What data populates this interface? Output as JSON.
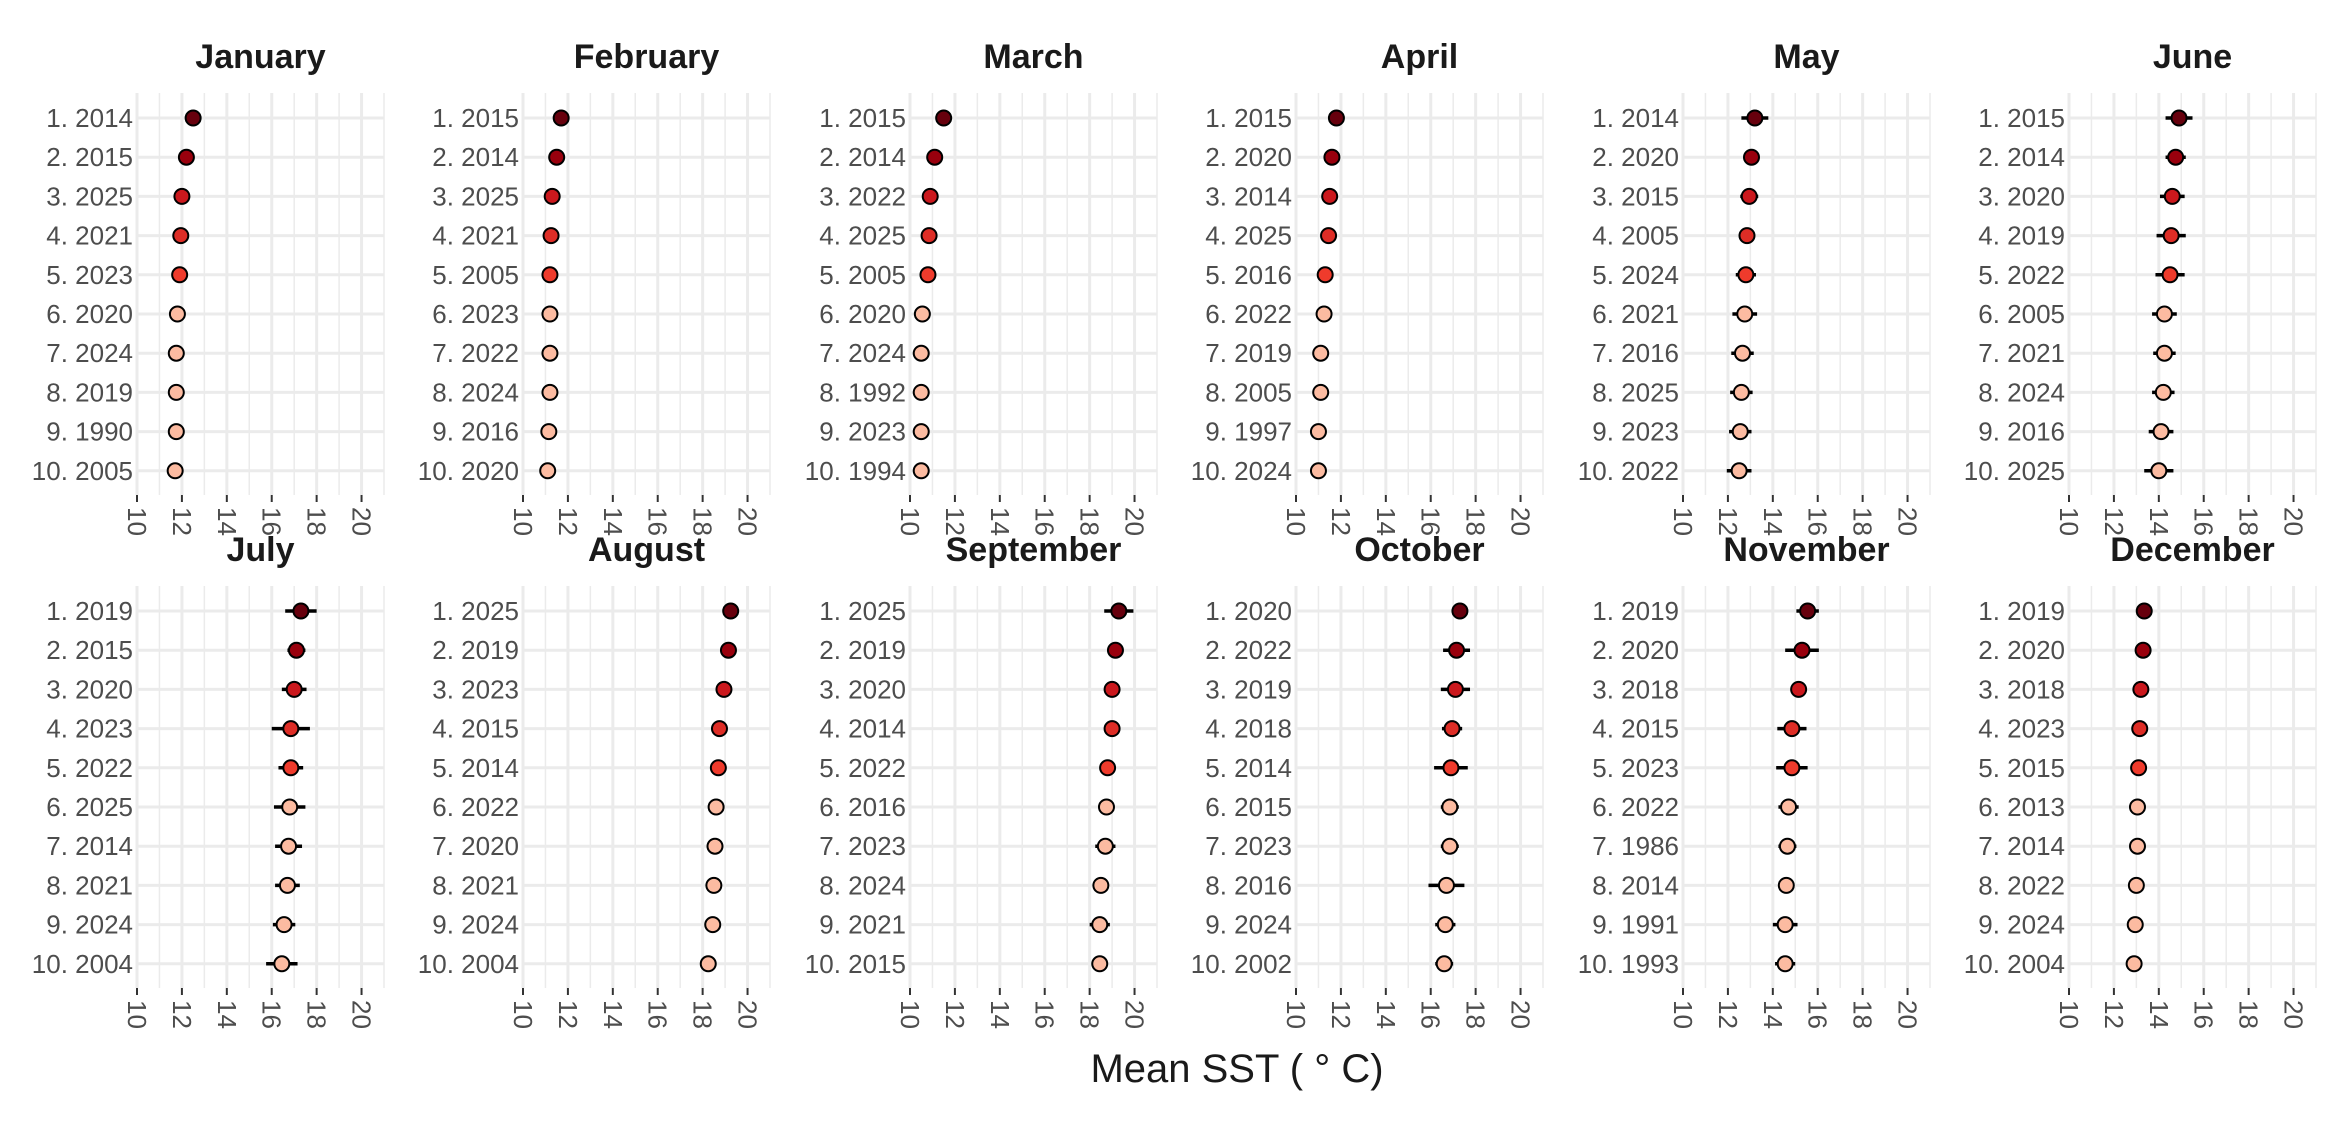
{
  "chart_data": {
    "type": "scatter",
    "xlabel": "Mean SST ( ° C)",
    "xlim": [
      10,
      21
    ],
    "xticks": [
      10,
      12,
      14,
      16,
      18,
      20
    ],
    "tick_labels": [
      "10",
      "12",
      "14",
      "16",
      "18",
      "20"
    ],
    "grid": true,
    "rank_colors": [
      "#67000d",
      "#99000d",
      "#cb181d",
      "#de2d26",
      "#ef3b2c",
      "#fcbba1",
      "#fcbba1",
      "#fcbba1",
      "#fcbba1",
      "#fcbba1"
    ],
    "panels": [
      {
        "title": "January",
        "labels": [
          "1. 2014",
          "2. 2015",
          "3. 2025",
          "4. 2021",
          "5. 2023",
          "6. 2020",
          "7. 2024",
          "8. 2019",
          "9. 1990",
          "10. 2005"
        ],
        "values": [
          12.5,
          12.2,
          12.0,
          11.95,
          11.9,
          11.8,
          11.75,
          11.75,
          11.75,
          11.7
        ],
        "err": [
          0.1,
          0.1,
          0.1,
          0.1,
          0.1,
          0.1,
          0.1,
          0.1,
          0.1,
          0.1
        ]
      },
      {
        "title": "February",
        "labels": [
          "1. 2015",
          "2. 2014",
          "3. 2025",
          "4. 2021",
          "5. 2005",
          "6. 2023",
          "7. 2022",
          "8. 2024",
          "9. 2016",
          "10. 2020"
        ],
        "values": [
          11.7,
          11.5,
          11.3,
          11.25,
          11.2,
          11.2,
          11.2,
          11.2,
          11.15,
          11.1
        ],
        "err": [
          0.1,
          0.1,
          0.1,
          0.1,
          0.1,
          0.1,
          0.1,
          0.1,
          0.1,
          0.1
        ]
      },
      {
        "title": "March",
        "labels": [
          "1. 2015",
          "2. 2014",
          "3. 2022",
          "4. 2025",
          "5. 2005",
          "6. 2020",
          "7. 2024",
          "8. 1992",
          "9. 2023",
          "10. 1994"
        ],
        "values": [
          11.5,
          11.1,
          10.9,
          10.85,
          10.8,
          10.55,
          10.5,
          10.5,
          10.5,
          10.5
        ],
        "err": [
          0.1,
          0.1,
          0.1,
          0.1,
          0.1,
          0.1,
          0.1,
          0.1,
          0.1,
          0.1
        ]
      },
      {
        "title": "April",
        "labels": [
          "1. 2015",
          "2. 2020",
          "3. 2014",
          "4. 2025",
          "5. 2016",
          "6. 2022",
          "7. 2019",
          "8. 2005",
          "9. 1997",
          "10. 2024"
        ],
        "values": [
          11.8,
          11.6,
          11.5,
          11.45,
          11.3,
          11.25,
          11.1,
          11.1,
          11.0,
          11.0
        ],
        "err": [
          0.15,
          0.25,
          0.1,
          0.1,
          0.1,
          0.1,
          0.1,
          0.1,
          0.1,
          0.1
        ]
      },
      {
        "title": "May",
        "labels": [
          "1. 2014",
          "2. 2020",
          "3. 2015",
          "4. 2005",
          "5. 2024",
          "6. 2021",
          "7. 2016",
          "8. 2025",
          "9. 2023",
          "10. 2022"
        ],
        "values": [
          13.2,
          13.05,
          12.95,
          12.85,
          12.8,
          12.75,
          12.65,
          12.6,
          12.55,
          12.5
        ],
        "err": [
          0.6,
          0.3,
          0.4,
          0.2,
          0.45,
          0.55,
          0.5,
          0.5,
          0.5,
          0.55
        ]
      },
      {
        "title": "June",
        "labels": [
          "1. 2015",
          "2. 2014",
          "3. 2020",
          "4. 2019",
          "5. 2022",
          "6. 2005",
          "7. 2021",
          "8. 2024",
          "9. 2016",
          "10. 2025"
        ],
        "values": [
          14.9,
          14.75,
          14.6,
          14.55,
          14.5,
          14.25,
          14.25,
          14.2,
          14.1,
          14.0
        ],
        "err": [
          0.6,
          0.45,
          0.55,
          0.65,
          0.65,
          0.55,
          0.5,
          0.5,
          0.55,
          0.65
        ]
      },
      {
        "title": "July",
        "labels": [
          "1. 2019",
          "2. 2015",
          "3. 2020",
          "4. 2023",
          "5. 2022",
          "6. 2025",
          "7. 2014",
          "8. 2021",
          "9. 2024",
          "10. 2004"
        ],
        "values": [
          17.3,
          17.1,
          17.0,
          16.85,
          16.85,
          16.8,
          16.75,
          16.7,
          16.55,
          16.45
        ],
        "err": [
          0.7,
          0.4,
          0.55,
          0.85,
          0.55,
          0.7,
          0.6,
          0.55,
          0.5,
          0.7
        ]
      },
      {
        "title": "August",
        "labels": [
          "1. 2025",
          "2. 2019",
          "3. 2023",
          "4. 2015",
          "5. 2014",
          "6. 2022",
          "7. 2020",
          "8. 2021",
          "9. 2024",
          "10. 2004"
        ],
        "values": [
          19.25,
          19.15,
          18.95,
          18.75,
          18.7,
          18.6,
          18.55,
          18.5,
          18.45,
          18.25
        ],
        "err": [
          0.35,
          0.2,
          0.2,
          0.2,
          0.2,
          0.2,
          0.2,
          0.2,
          0.2,
          0.2
        ]
      },
      {
        "title": "September",
        "labels": [
          "1. 2025",
          "2. 2019",
          "3. 2020",
          "4. 2014",
          "5. 2022",
          "6. 2016",
          "7. 2023",
          "8. 2024",
          "9. 2021",
          "10. 2015"
        ],
        "values": [
          19.3,
          19.15,
          19.0,
          19.0,
          18.8,
          18.75,
          18.7,
          18.5,
          18.45,
          18.45
        ],
        "err": [
          0.65,
          0.2,
          0.2,
          0.2,
          0.2,
          0.2,
          0.45,
          0.2,
          0.45,
          0.2
        ]
      },
      {
        "title": "October",
        "labels": [
          "1. 2020",
          "2. 2022",
          "3. 2019",
          "4. 2018",
          "5. 2014",
          "6. 2015",
          "7. 2023",
          "8. 2016",
          "9. 2024",
          "10. 2002"
        ],
        "values": [
          17.3,
          17.15,
          17.1,
          16.95,
          16.9,
          16.85,
          16.85,
          16.7,
          16.65,
          16.6
        ],
        "err": [
          0.35,
          0.6,
          0.65,
          0.45,
          0.75,
          0.4,
          0.4,
          0.8,
          0.45,
          0.4
        ]
      },
      {
        "title": "November",
        "labels": [
          "1. 2019",
          "2. 2020",
          "3. 2018",
          "4. 2015",
          "5. 2023",
          "6. 2022",
          "7. 1986",
          "8. 2014",
          "9. 1991",
          "10. 1993"
        ],
        "values": [
          15.55,
          15.3,
          15.15,
          14.85,
          14.85,
          14.7,
          14.65,
          14.6,
          14.55,
          14.55
        ],
        "err": [
          0.5,
          0.75,
          0.35,
          0.65,
          0.7,
          0.45,
          0.4,
          0.35,
          0.55,
          0.45
        ]
      },
      {
        "title": "December",
        "labels": [
          "1. 2019",
          "2. 2020",
          "3. 2018",
          "4. 2023",
          "5. 2015",
          "6. 2013",
          "7. 2014",
          "8. 2022",
          "9. 2024",
          "10. 2004"
        ],
        "values": [
          13.35,
          13.3,
          13.2,
          13.15,
          13.1,
          13.05,
          13.05,
          13.0,
          12.95,
          12.9
        ],
        "err": [
          0.35,
          0.3,
          0.35,
          0.3,
          0.25,
          0.1,
          0.1,
          0.1,
          0.1,
          0.1
        ]
      }
    ]
  }
}
